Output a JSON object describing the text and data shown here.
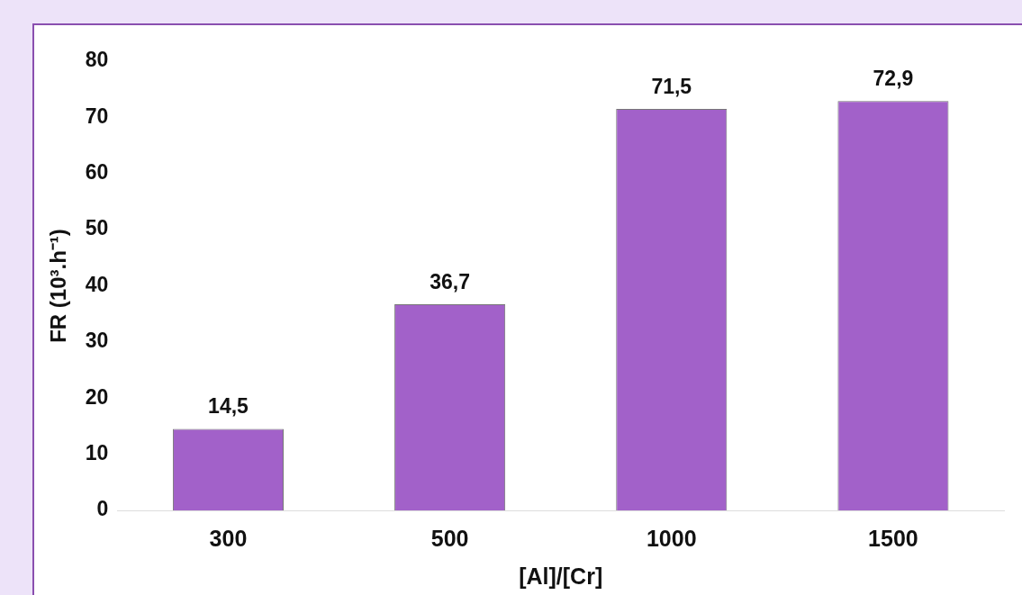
{
  "chart_data": {
    "type": "bar",
    "xlabel": "[Al]/[Cr]",
    "ylabel": "FR (10³.h⁻¹)",
    "categories": [
      "300",
      "500",
      "1000",
      "1500"
    ],
    "values": [
      14.5,
      36.7,
      71.5,
      72.9
    ],
    "value_labels": [
      "14,5",
      "36,7",
      "71,5",
      "72,9"
    ],
    "color": "#a261c9",
    "ylim": [
      0,
      80
    ],
    "yticks": [
      0,
      10,
      20,
      30,
      40,
      50,
      60,
      70,
      80
    ],
    "grid": false,
    "legend": false
  }
}
